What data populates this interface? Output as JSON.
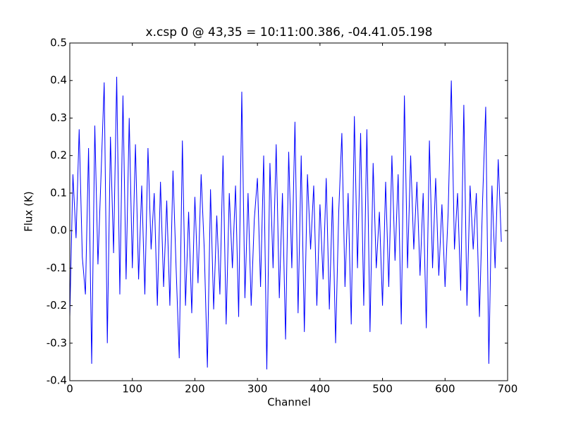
{
  "chart_data": {
    "type": "line",
    "title": "x.csp 0 @ 43,35 = 10:11:00.386, -04.41.05.198",
    "x_label": "Channel",
    "y_label": "Flux (K)",
    "x": [
      0,
      5,
      10,
      15,
      20,
      25,
      30,
      35,
      40,
      45,
      50,
      55,
      60,
      65,
      70,
      75,
      80,
      85,
      90,
      95,
      100,
      105,
      110,
      115,
      120,
      125,
      130,
      135,
      140,
      145,
      150,
      155,
      160,
      165,
      170,
      175,
      180,
      185,
      190,
      195,
      200,
      205,
      210,
      215,
      220,
      225,
      230,
      235,
      240,
      245,
      250,
      255,
      260,
      265,
      270,
      275,
      280,
      285,
      290,
      295,
      300,
      305,
      310,
      315,
      320,
      325,
      330,
      335,
      340,
      345,
      350,
      355,
      360,
      365,
      370,
      375,
      380,
      385,
      390,
      395,
      400,
      405,
      410,
      415,
      420,
      425,
      430,
      435,
      440,
      445,
      450,
      455,
      460,
      465,
      470,
      475,
      480,
      485,
      490,
      495,
      500,
      505,
      510,
      515,
      520,
      525,
      530,
      535,
      540,
      545,
      550,
      555,
      560,
      565,
      570,
      575,
      580,
      585,
      590,
      595,
      600,
      605,
      610,
      615,
      620,
      625,
      630,
      635,
      640,
      645,
      650,
      655,
      660,
      665,
      670,
      675,
      680,
      685,
      690
    ],
    "series": [
      {
        "color": "#0000ff",
        "values": [
          -0.23,
          0.15,
          -0.02,
          0.27,
          -0.07,
          -0.17,
          0.22,
          -0.355,
          0.28,
          -0.09,
          0.15,
          0.395,
          -0.3,
          0.25,
          -0.06,
          0.41,
          -0.17,
          0.36,
          -0.13,
          0.3,
          -0.1,
          0.23,
          -0.13,
          0.12,
          -0.17,
          0.22,
          -0.05,
          0.1,
          -0.2,
          0.13,
          -0.15,
          0.08,
          -0.2,
          0.16,
          -0.1,
          -0.34,
          0.24,
          -0.2,
          0.05,
          -0.22,
          0.09,
          -0.14,
          0.15,
          -0.05,
          -0.365,
          0.11,
          -0.21,
          0.04,
          -0.17,
          0.2,
          -0.25,
          0.1,
          -0.1,
          0.12,
          -0.23,
          0.37,
          -0.18,
          0.1,
          -0.2,
          0.03,
          0.14,
          -0.15,
          0.2,
          -0.37,
          0.18,
          -0.1,
          0.23,
          -0.18,
          0.1,
          -0.29,
          0.21,
          -0.1,
          0.29,
          -0.22,
          0.2,
          -0.27,
          0.15,
          -0.05,
          0.12,
          -0.2,
          0.07,
          -0.13,
          0.14,
          -0.21,
          0.09,
          -0.3,
          0.05,
          0.26,
          -0.15,
          0.1,
          -0.25,
          0.305,
          -0.1,
          0.26,
          -0.2,
          0.27,
          -0.27,
          0.18,
          -0.1,
          0.05,
          -0.2,
          0.13,
          -0.15,
          0.2,
          -0.08,
          0.15,
          -0.25,
          0.36,
          -0.1,
          0.2,
          -0.05,
          0.13,
          -0.12,
          0.1,
          -0.26,
          0.24,
          -0.1,
          0.14,
          -0.12,
          0.07,
          -0.15,
          0.05,
          0.4,
          -0.05,
          0.1,
          -0.16,
          0.335,
          -0.2,
          0.12,
          -0.05,
          0.1,
          -0.23,
          0.08,
          0.33,
          -0.355,
          0.12,
          -0.1,
          0.19,
          -0.03
        ]
      }
    ],
    "xlim": [
      0,
      700
    ],
    "xticks": [
      0,
      100,
      200,
      300,
      400,
      500,
      600,
      700
    ],
    "ylim": [
      -0.4,
      0.5
    ],
    "yticks": [
      -0.4,
      -0.3,
      -0.2,
      -0.1,
      {
        "value": 0,
        "label": "0.0"
      },
      0.1,
      0.2,
      0.3,
      0.4,
      0.5
    ]
  }
}
